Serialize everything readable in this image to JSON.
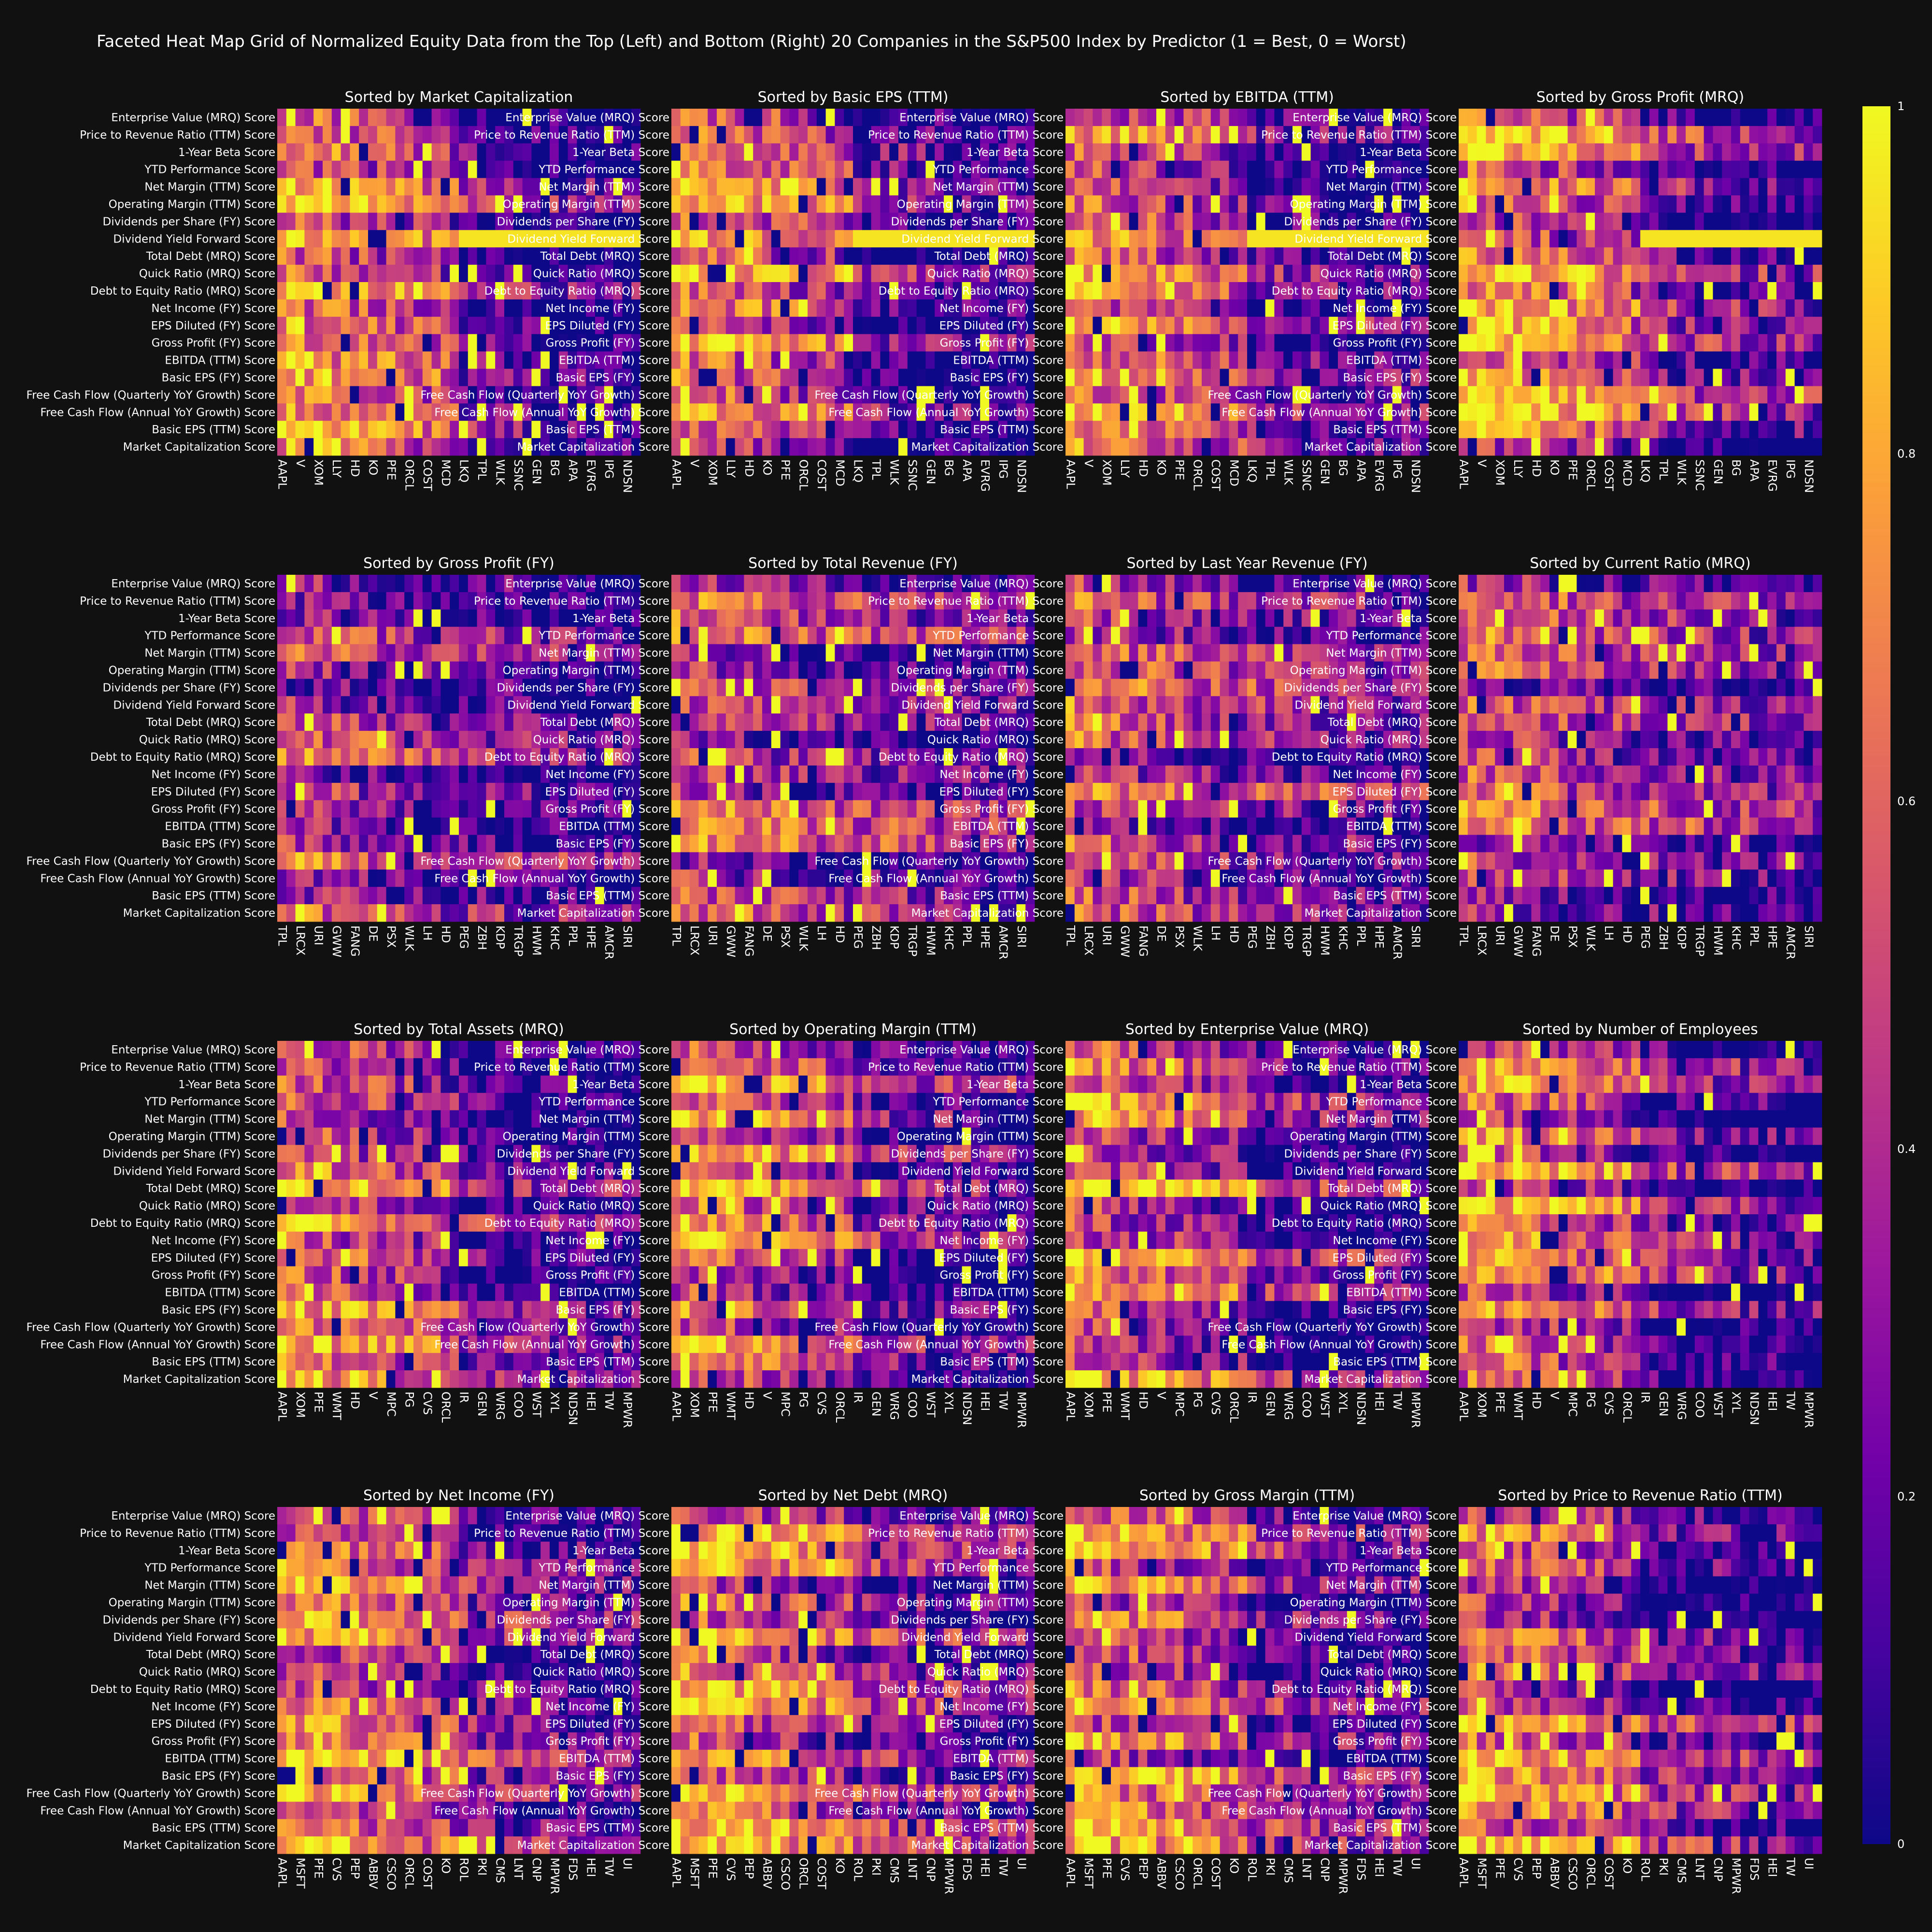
{
  "title": "Faceted Heat Map Grid of Normalized Equity Data from the Top (Left) and Bottom (Right) 20 Companies in the S&P500 Index by Predictor (1 = Best, 0 = Worst)",
  "colorscale": [
    "#0d0887",
    "#46039f",
    "#7201a8",
    "#9c179e",
    "#bd3786",
    "#d8576b",
    "#ed7953",
    "#fb9f3a",
    "#fdca26",
    "#f0f921"
  ],
  "colorbar": {
    "ticks": [
      0,
      0.2,
      0.4,
      0.6,
      0.8,
      1
    ],
    "tick_labels": [
      "0",
      "0.2",
      "0.4",
      "0.6",
      "0.8",
      "1"
    ],
    "range": [
      0,
      1
    ]
  },
  "chart_data": {
    "type": "heatmap",
    "rows": [
      "Enterprise Value (MRQ) Score",
      "Price to Revenue Ratio (TTM) Score",
      "1-Year Beta Score",
      "YTD Performance Score",
      "Net Margin (TTM) Score",
      "Operating Margin (TTM) Score",
      "Dividends per Share (FY) Score",
      "Dividend Yield Forward Score",
      "Total Debt (MRQ) Score",
      "Quick Ratio (MRQ) Score",
      "Debt to Equity Ratio (MRQ) Score",
      "Net Income (FY) Score",
      "EPS Diluted (FY) Score",
      "Gross Profit (FY) Score",
      "EBITDA (TTM) Score",
      "Basic EPS (FY) Score",
      "Free Cash Flow (Quarterly YoY Growth) Score",
      "Free Cash Flow (Annual YoY Growth) Score",
      "Basic EPS (TTM) Score",
      "Market Capitalization Score"
    ],
    "n_columns": 40,
    "value_range": [
      0,
      1
    ],
    "facets": [
      {
        "title": "Sorted by Market Capitalization",
        "x_ticks": [
          "AAPL",
          "V",
          "XOM",
          "LLY",
          "HD",
          "KO",
          "PFE",
          "ORCL",
          "COST",
          "MCD",
          "LKQ",
          "TPL",
          "WLK",
          "SSNC",
          "GEN",
          "BG",
          "APA",
          "EVRG",
          "IPG",
          "NDSN"
        ],
        "seed": 11,
        "top_bias": 0.78,
        "bottom_bias": 0.22
      },
      {
        "title": "Sorted by Basic EPS (TTM)",
        "x_ticks": [
          "AAPL",
          "V",
          "XOM",
          "LLY",
          "HD",
          "KO",
          "PFE",
          "ORCL",
          "COST",
          "MCD",
          "LKQ",
          "TPL",
          "WLK",
          "SSNC",
          "GEN",
          "BG",
          "APA",
          "EVRG",
          "IPG",
          "NDSN"
        ],
        "seed": 23,
        "top_bias": 0.76,
        "bottom_bias": 0.24
      },
      {
        "title": "Sorted by EBITDA (TTM)",
        "x_ticks": [
          "AAPL",
          "V",
          "XOM",
          "LLY",
          "HD",
          "KO",
          "PFE",
          "ORCL",
          "COST",
          "MCD",
          "LKQ",
          "TPL",
          "WLK",
          "SSNC",
          "GEN",
          "BG",
          "APA",
          "EVRG",
          "IPG",
          "NDSN"
        ],
        "seed": 37,
        "top_bias": 0.74,
        "bottom_bias": 0.26
      },
      {
        "title": "Sorted by Gross Profit (MRQ)",
        "x_ticks": [
          "AAPL",
          "V",
          "XOM",
          "LLY",
          "HD",
          "KO",
          "PFE",
          "ORCL",
          "COST",
          "MCD",
          "LKQ",
          "TPL",
          "WLK",
          "SSNC",
          "GEN",
          "BG",
          "APA",
          "EVRG",
          "IPG",
          "NDSN"
        ],
        "seed": 41,
        "top_bias": 0.75,
        "bottom_bias": 0.25
      },
      {
        "title": "Sorted by Gross Profit (FY)",
        "x_ticks": [
          "TPL",
          "LRCX",
          "URI",
          "GWW",
          "FANG",
          "DE",
          "PSX",
          "WLK",
          "LH",
          "HD",
          "PEG",
          "ZBH",
          "KDP",
          "TRGP",
          "HWM",
          "KHC",
          "PPL",
          "HPE",
          "AMCR",
          "SIRI"
        ],
        "seed": 53,
        "top_bias": 0.55,
        "bottom_bias": 0.3
      },
      {
        "title": "Sorted by Total Revenue (FY)",
        "x_ticks": [
          "TPL",
          "LRCX",
          "URI",
          "GWW",
          "FANG",
          "DE",
          "PSX",
          "WLK",
          "LH",
          "HD",
          "PEG",
          "ZBH",
          "KDP",
          "TRGP",
          "HWM",
          "KHC",
          "PPL",
          "HPE",
          "AMCR",
          "SIRI"
        ],
        "seed": 61,
        "top_bias": 0.55,
        "bottom_bias": 0.3
      },
      {
        "title": "Sorted by Last Year Revenue (FY)",
        "x_ticks": [
          "TPL",
          "LRCX",
          "URI",
          "GWW",
          "FANG",
          "DE",
          "PSX",
          "WLK",
          "LH",
          "HD",
          "PEG",
          "ZBH",
          "KDP",
          "TRGP",
          "HWM",
          "KHC",
          "PPL",
          "HPE",
          "AMCR",
          "SIRI"
        ],
        "seed": 71,
        "top_bias": 0.55,
        "bottom_bias": 0.3
      },
      {
        "title": "Sorted by Current Ratio (MRQ)",
        "x_ticks": [
          "TPL",
          "LRCX",
          "URI",
          "GWW",
          "FANG",
          "DE",
          "PSX",
          "WLK",
          "LH",
          "HD",
          "PEG",
          "ZBH",
          "KDP",
          "TRGP",
          "HWM",
          "KHC",
          "PPL",
          "HPE",
          "AMCR",
          "SIRI"
        ],
        "seed": 83,
        "top_bias": 0.55,
        "bottom_bias": 0.3
      },
      {
        "title": "Sorted by Total Assets (MRQ)",
        "x_ticks": [
          "AAPL",
          "XOM",
          "PFE",
          "WMT",
          "HD",
          "V",
          "MPC",
          "PG",
          "CVS",
          "ORCL",
          "IR",
          "GEN",
          "WRG",
          "COO",
          "WST",
          "XYL",
          "NDSN",
          "HEI",
          "TW",
          "MPWR"
        ],
        "seed": 97,
        "top_bias": 0.72,
        "bottom_bias": 0.25
      },
      {
        "title": "Sorted by Operating Margin (TTM)",
        "x_ticks": [
          "AAPL",
          "XOM",
          "PFE",
          "WMT",
          "HD",
          "V",
          "MPC",
          "PG",
          "CVS",
          "ORCL",
          "IR",
          "GEN",
          "WRG",
          "COO",
          "WST",
          "XYL",
          "NDSN",
          "HEI",
          "TW",
          "MPWR"
        ],
        "seed": 101,
        "top_bias": 0.72,
        "bottom_bias": 0.25
      },
      {
        "title": "Sorted by Enterprise Value (MRQ)",
        "x_ticks": [
          "AAPL",
          "XOM",
          "PFE",
          "WMT",
          "HD",
          "V",
          "MPC",
          "PG",
          "CVS",
          "ORCL",
          "IR",
          "GEN",
          "WRG",
          "COO",
          "WST",
          "XYL",
          "NDSN",
          "HEI",
          "TW",
          "MPWR"
        ],
        "seed": 113,
        "top_bias": 0.72,
        "bottom_bias": 0.25
      },
      {
        "title": "Sorted by Number of Employees",
        "x_ticks": [
          "AAPL",
          "XOM",
          "PFE",
          "WMT",
          "HD",
          "V",
          "MPC",
          "PG",
          "CVS",
          "ORCL",
          "IR",
          "GEN",
          "WRG",
          "COO",
          "WST",
          "XYL",
          "NDSN",
          "HEI",
          "TW",
          "MPWR"
        ],
        "seed": 127,
        "top_bias": 0.72,
        "bottom_bias": 0.25
      },
      {
        "title": "Sorted by Net Income (FY)",
        "x_ticks": [
          "AAPL",
          "MSFT",
          "PFE",
          "CVS",
          "PEP",
          "ABBV",
          "CSCO",
          "ORCL",
          "COST",
          "KO",
          "ROL",
          "PKI",
          "CMS",
          "LNT",
          "CNP",
          "MPWR",
          "FDS",
          "HEI",
          "TW",
          "UI"
        ],
        "seed": 131,
        "top_bias": 0.72,
        "bottom_bias": 0.28
      },
      {
        "title": "Sorted by Net Debt (MRQ)",
        "x_ticks": [
          "AAPL",
          "MSFT",
          "PFE",
          "CVS",
          "PEP",
          "ABBV",
          "CSCO",
          "ORCL",
          "COST",
          "KO",
          "ROL",
          "PKI",
          "CMS",
          "LNT",
          "CNP",
          "MPWR",
          "FDS",
          "HEI",
          "TW",
          "UI"
        ],
        "seed": 139,
        "top_bias": 0.72,
        "bottom_bias": 0.28
      },
      {
        "title": "Sorted by Gross Margin (TTM)",
        "x_ticks": [
          "AAPL",
          "MSFT",
          "PFE",
          "CVS",
          "PEP",
          "ABBV",
          "CSCO",
          "ORCL",
          "COST",
          "KO",
          "ROL",
          "PKI",
          "CMS",
          "LNT",
          "CNP",
          "MPWR",
          "FDS",
          "HEI",
          "TW",
          "UI"
        ],
        "seed": 149,
        "top_bias": 0.72,
        "bottom_bias": 0.28
      },
      {
        "title": "Sorted by Price to Revenue Ratio (TTM)",
        "x_ticks": [
          "AAPL",
          "MSFT",
          "PFE",
          "CVS",
          "PEP",
          "ABBV",
          "CSCO",
          "ORCL",
          "COST",
          "KO",
          "ROL",
          "PKI",
          "CMS",
          "LNT",
          "CNP",
          "MPWR",
          "FDS",
          "HEI",
          "TW",
          "UI"
        ],
        "seed": 157,
        "top_bias": 0.72,
        "bottom_bias": 0.28
      }
    ]
  }
}
